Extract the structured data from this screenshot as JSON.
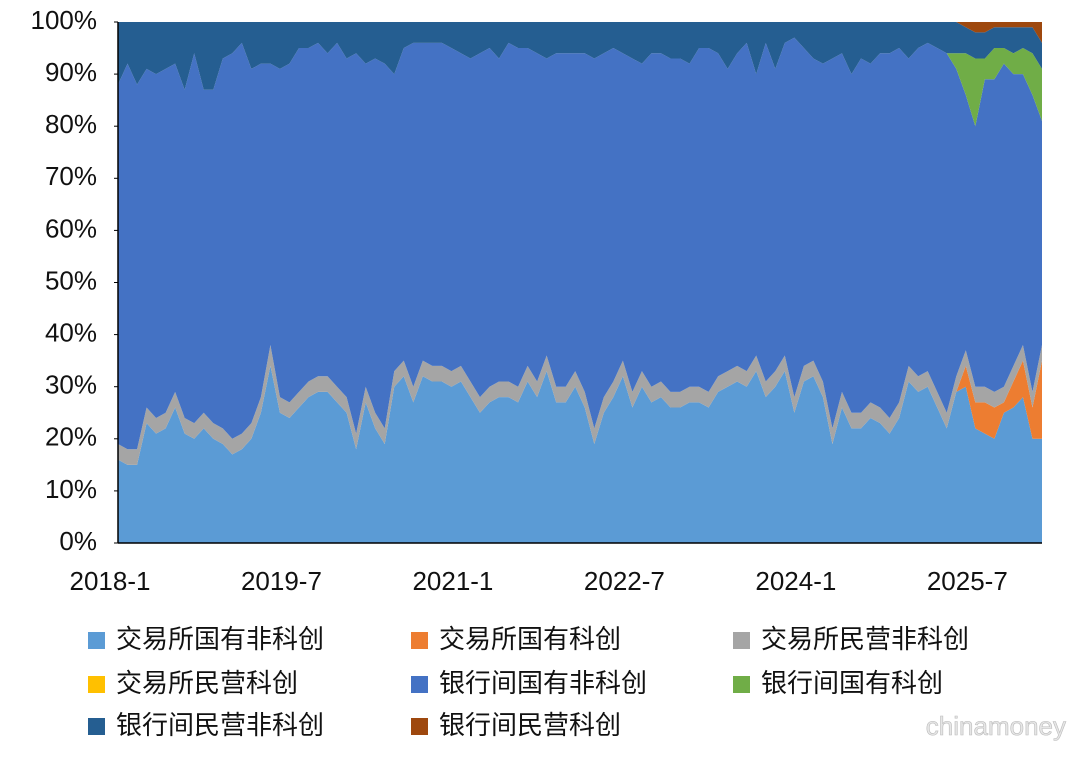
{
  "chart_data": {
    "type": "stacked_area_percent",
    "watermark": "chinamoney",
    "legend": "bottom",
    "categories": [
      "2018-1",
      null,
      null,
      null,
      null,
      null,
      null,
      null,
      null,
      null,
      null,
      null,
      null,
      null,
      null,
      null,
      null,
      null,
      "2019-7",
      null,
      null,
      null,
      null,
      null,
      null,
      null,
      null,
      null,
      null,
      null,
      null,
      null,
      null,
      null,
      null,
      null,
      "2021-1",
      null,
      null,
      null,
      null,
      null,
      null,
      null,
      null,
      null,
      null,
      null,
      null,
      null,
      null,
      null,
      null,
      null,
      "2022-7",
      null,
      null,
      null,
      null,
      null,
      null,
      null,
      null,
      null,
      null,
      null,
      null,
      null,
      null,
      null,
      null,
      null,
      "2024-1",
      null,
      null,
      null,
      null,
      null,
      null,
      null,
      null,
      null,
      null,
      null,
      null,
      null,
      null,
      null,
      null,
      null,
      "2025-7",
      null,
      null,
      null,
      null,
      null,
      null,
      null
    ],
    "ylim": [
      0,
      100
    ],
    "yticks": [
      {
        "value": 0,
        "label": "0%"
      },
      {
        "value": 10,
        "label": "10%"
      },
      {
        "value": 20,
        "label": "20%"
      },
      {
        "value": 30,
        "label": "30%"
      },
      {
        "value": 40,
        "label": "40%"
      },
      {
        "value": 50,
        "label": "50%"
      },
      {
        "value": 60,
        "label": "60%"
      },
      {
        "value": 70,
        "label": "70%"
      },
      {
        "value": 80,
        "label": "80%"
      },
      {
        "value": 90,
        "label": "90%"
      },
      {
        "value": 100,
        "label": "100%"
      }
    ],
    "series": [
      {
        "name": "交易所国有非科创",
        "color": "#5b9bd5",
        "values": [
          16,
          15,
          15,
          23,
          21,
          22,
          26,
          21,
          20,
          22,
          20,
          19,
          17,
          18,
          20,
          25,
          34,
          25,
          24,
          26,
          28,
          29,
          29,
          27,
          25,
          18,
          27,
          22,
          19,
          30,
          32,
          27,
          32,
          31,
          31,
          30,
          31,
          28,
          25,
          27,
          28,
          28,
          27,
          31,
          28,
          33,
          27,
          27,
          30,
          26,
          19,
          25,
          28,
          32,
          26,
          30,
          27,
          28,
          26,
          26,
          27,
          27,
          26,
          29,
          30,
          31,
          30,
          33,
          28,
          30,
          33,
          25,
          31,
          32,
          28,
          19,
          26,
          22,
          22,
          24,
          23,
          21,
          24,
          31,
          29,
          30,
          26,
          22,
          29,
          30,
          22,
          21,
          20,
          25,
          26,
          28,
          20,
          20
        ]
      },
      {
        "name": "交易所国有科创",
        "color": "#ed7d31",
        "values": [
          0,
          0,
          0,
          0,
          0,
          0,
          0,
          0,
          0,
          0,
          0,
          0,
          0,
          0,
          0,
          0,
          0,
          0,
          0,
          0,
          0,
          0,
          0,
          0,
          0,
          0,
          0,
          0,
          0,
          0,
          0,
          0,
          0,
          0,
          0,
          0,
          0,
          0,
          0,
          0,
          0,
          0,
          0,
          0,
          0,
          0,
          0,
          0,
          0,
          0,
          0,
          0,
          0,
          0,
          0,
          0,
          0,
          0,
          0,
          0,
          0,
          0,
          0,
          0,
          0,
          0,
          0,
          0,
          0,
          0,
          0,
          0,
          0,
          0,
          0,
          0,
          0,
          0,
          0,
          0,
          0,
          0,
          0,
          0,
          0,
          0,
          0,
          0,
          0,
          4,
          5,
          6,
          6,
          2,
          5,
          7,
          6,
          15
        ]
      },
      {
        "name": "交易所民营非科创",
        "color": "#a5a5a5",
        "values": [
          3,
          3,
          3,
          3,
          3,
          3,
          3,
          3,
          3,
          3,
          3,
          3,
          3,
          3,
          3,
          3,
          4,
          3,
          3,
          3,
          3,
          3,
          3,
          3,
          3,
          3,
          3,
          3,
          3,
          3,
          3,
          3,
          3,
          3,
          3,
          3,
          3,
          3,
          3,
          3,
          3,
          3,
          3,
          3,
          3,
          3,
          3,
          3,
          3,
          3,
          3,
          3,
          3,
          3,
          3,
          3,
          3,
          3,
          3,
          3,
          3,
          3,
          3,
          3,
          3,
          3,
          3,
          3,
          3,
          3,
          3,
          3,
          3,
          3,
          3,
          3,
          3,
          3,
          3,
          3,
          3,
          3,
          3,
          3,
          3,
          3,
          3,
          3,
          3,
          3,
          3,
          3,
          3,
          3,
          3,
          3,
          3,
          3
        ]
      },
      {
        "name": "交易所民营科创",
        "color": "#ffc000",
        "values": [
          0,
          0,
          0,
          0,
          0,
          0,
          0,
          0,
          0,
          0,
          0,
          0,
          0,
          0,
          0,
          0,
          0,
          0,
          0,
          0,
          0,
          0,
          0,
          0,
          0,
          0,
          0,
          0,
          0,
          0,
          0,
          0,
          0,
          0,
          0,
          0,
          0,
          0,
          0,
          0,
          0,
          0,
          0,
          0,
          0,
          0,
          0,
          0,
          0,
          0,
          0,
          0,
          0,
          0,
          0,
          0,
          0,
          0,
          0,
          0,
          0,
          0,
          0,
          0,
          0,
          0,
          0,
          0,
          0,
          0,
          0,
          0,
          0,
          0,
          0,
          0,
          0,
          0,
          0,
          0,
          0,
          0,
          0,
          0,
          0,
          0,
          0,
          0,
          0,
          0,
          0,
          0,
          0,
          0,
          0,
          0,
          0,
          0
        ]
      },
      {
        "name": "银行间国有非科创",
        "color": "#4472c4",
        "values": [
          69,
          74,
          70,
          65,
          66,
          66,
          63,
          63,
          71,
          62,
          64,
          71,
          74,
          75,
          68,
          64,
          54,
          63,
          65,
          66,
          64,
          64,
          62,
          66,
          65,
          73,
          62,
          68,
          70,
          57,
          60,
          66,
          61,
          62,
          62,
          62,
          60,
          62,
          66,
          65,
          62,
          65,
          65,
          61,
          63,
          57,
          64,
          64,
          61,
          65,
          71,
          66,
          64,
          59,
          64,
          59,
          64,
          63,
          64,
          64,
          62,
          65,
          66,
          62,
          58,
          60,
          63,
          54,
          65,
          58,
          60,
          69,
          61,
          58,
          61,
          71,
          65,
          65,
          68,
          65,
          68,
          70,
          68,
          59,
          63,
          63,
          66,
          69,
          59,
          49,
          50,
          59,
          60,
          62,
          56,
          52,
          57,
          43
        ]
      },
      {
        "name": "银行间国有科创",
        "color": "#70ad47",
        "values": [
          0,
          0,
          0,
          0,
          0,
          0,
          0,
          0,
          0,
          0,
          0,
          0,
          0,
          0,
          0,
          0,
          0,
          0,
          0,
          0,
          0,
          0,
          0,
          0,
          0,
          0,
          0,
          0,
          0,
          0,
          0,
          0,
          0,
          0,
          0,
          0,
          0,
          0,
          0,
          0,
          0,
          0,
          0,
          0,
          0,
          0,
          0,
          0,
          0,
          0,
          0,
          0,
          0,
          0,
          0,
          0,
          0,
          0,
          0,
          0,
          0,
          0,
          0,
          0,
          0,
          0,
          0,
          0,
          0,
          0,
          0,
          0,
          0,
          0,
          0,
          0,
          0,
          0,
          0,
          0,
          0,
          0,
          0,
          0,
          0,
          0,
          0,
          0,
          3,
          8,
          13,
          4,
          6,
          3,
          4,
          5,
          8,
          10
        ]
      },
      {
        "name": "银行间民营非科创",
        "color": "#255e91",
        "values": [
          12,
          8,
          12,
          9,
          10,
          9,
          8,
          13,
          6,
          13,
          13,
          7,
          6,
          4,
          9,
          8,
          8,
          9,
          8,
          5,
          5,
          4,
          6,
          4,
          7,
          6,
          8,
          7,
          8,
          10,
          5,
          4,
          4,
          4,
          4,
          5,
          6,
          7,
          6,
          5,
          7,
          4,
          5,
          5,
          6,
          7,
          6,
          6,
          6,
          6,
          7,
          6,
          5,
          6,
          7,
          8,
          6,
          6,
          7,
          7,
          8,
          5,
          5,
          6,
          9,
          6,
          4,
          10,
          4,
          9,
          4,
          3,
          5,
          7,
          8,
          7,
          6,
          10,
          7,
          8,
          6,
          6,
          5,
          7,
          5,
          4,
          5,
          6,
          6,
          5,
          5,
          5,
          4,
          4,
          5,
          4,
          5,
          5
        ]
      },
      {
        "name": "银行间民营科创",
        "color": "#9e480e",
        "values": [
          0,
          0,
          0,
          0,
          0,
          0,
          0,
          0,
          0,
          0,
          0,
          0,
          0,
          0,
          0,
          0,
          0,
          0,
          0,
          0,
          0,
          0,
          0,
          0,
          0,
          0,
          0,
          0,
          0,
          0,
          0,
          0,
          0,
          0,
          0,
          0,
          0,
          0,
          0,
          0,
          0,
          0,
          0,
          0,
          0,
          0,
          0,
          0,
          0,
          0,
          0,
          0,
          0,
          0,
          0,
          0,
          0,
          0,
          0,
          0,
          0,
          0,
          0,
          0,
          0,
          0,
          0,
          0,
          0,
          0,
          0,
          0,
          0,
          0,
          0,
          0,
          0,
          0,
          0,
          0,
          0,
          0,
          0,
          0,
          0,
          0,
          0,
          0,
          0,
          1,
          2,
          2,
          1,
          1,
          1,
          1,
          1,
          4
        ]
      }
    ]
  }
}
